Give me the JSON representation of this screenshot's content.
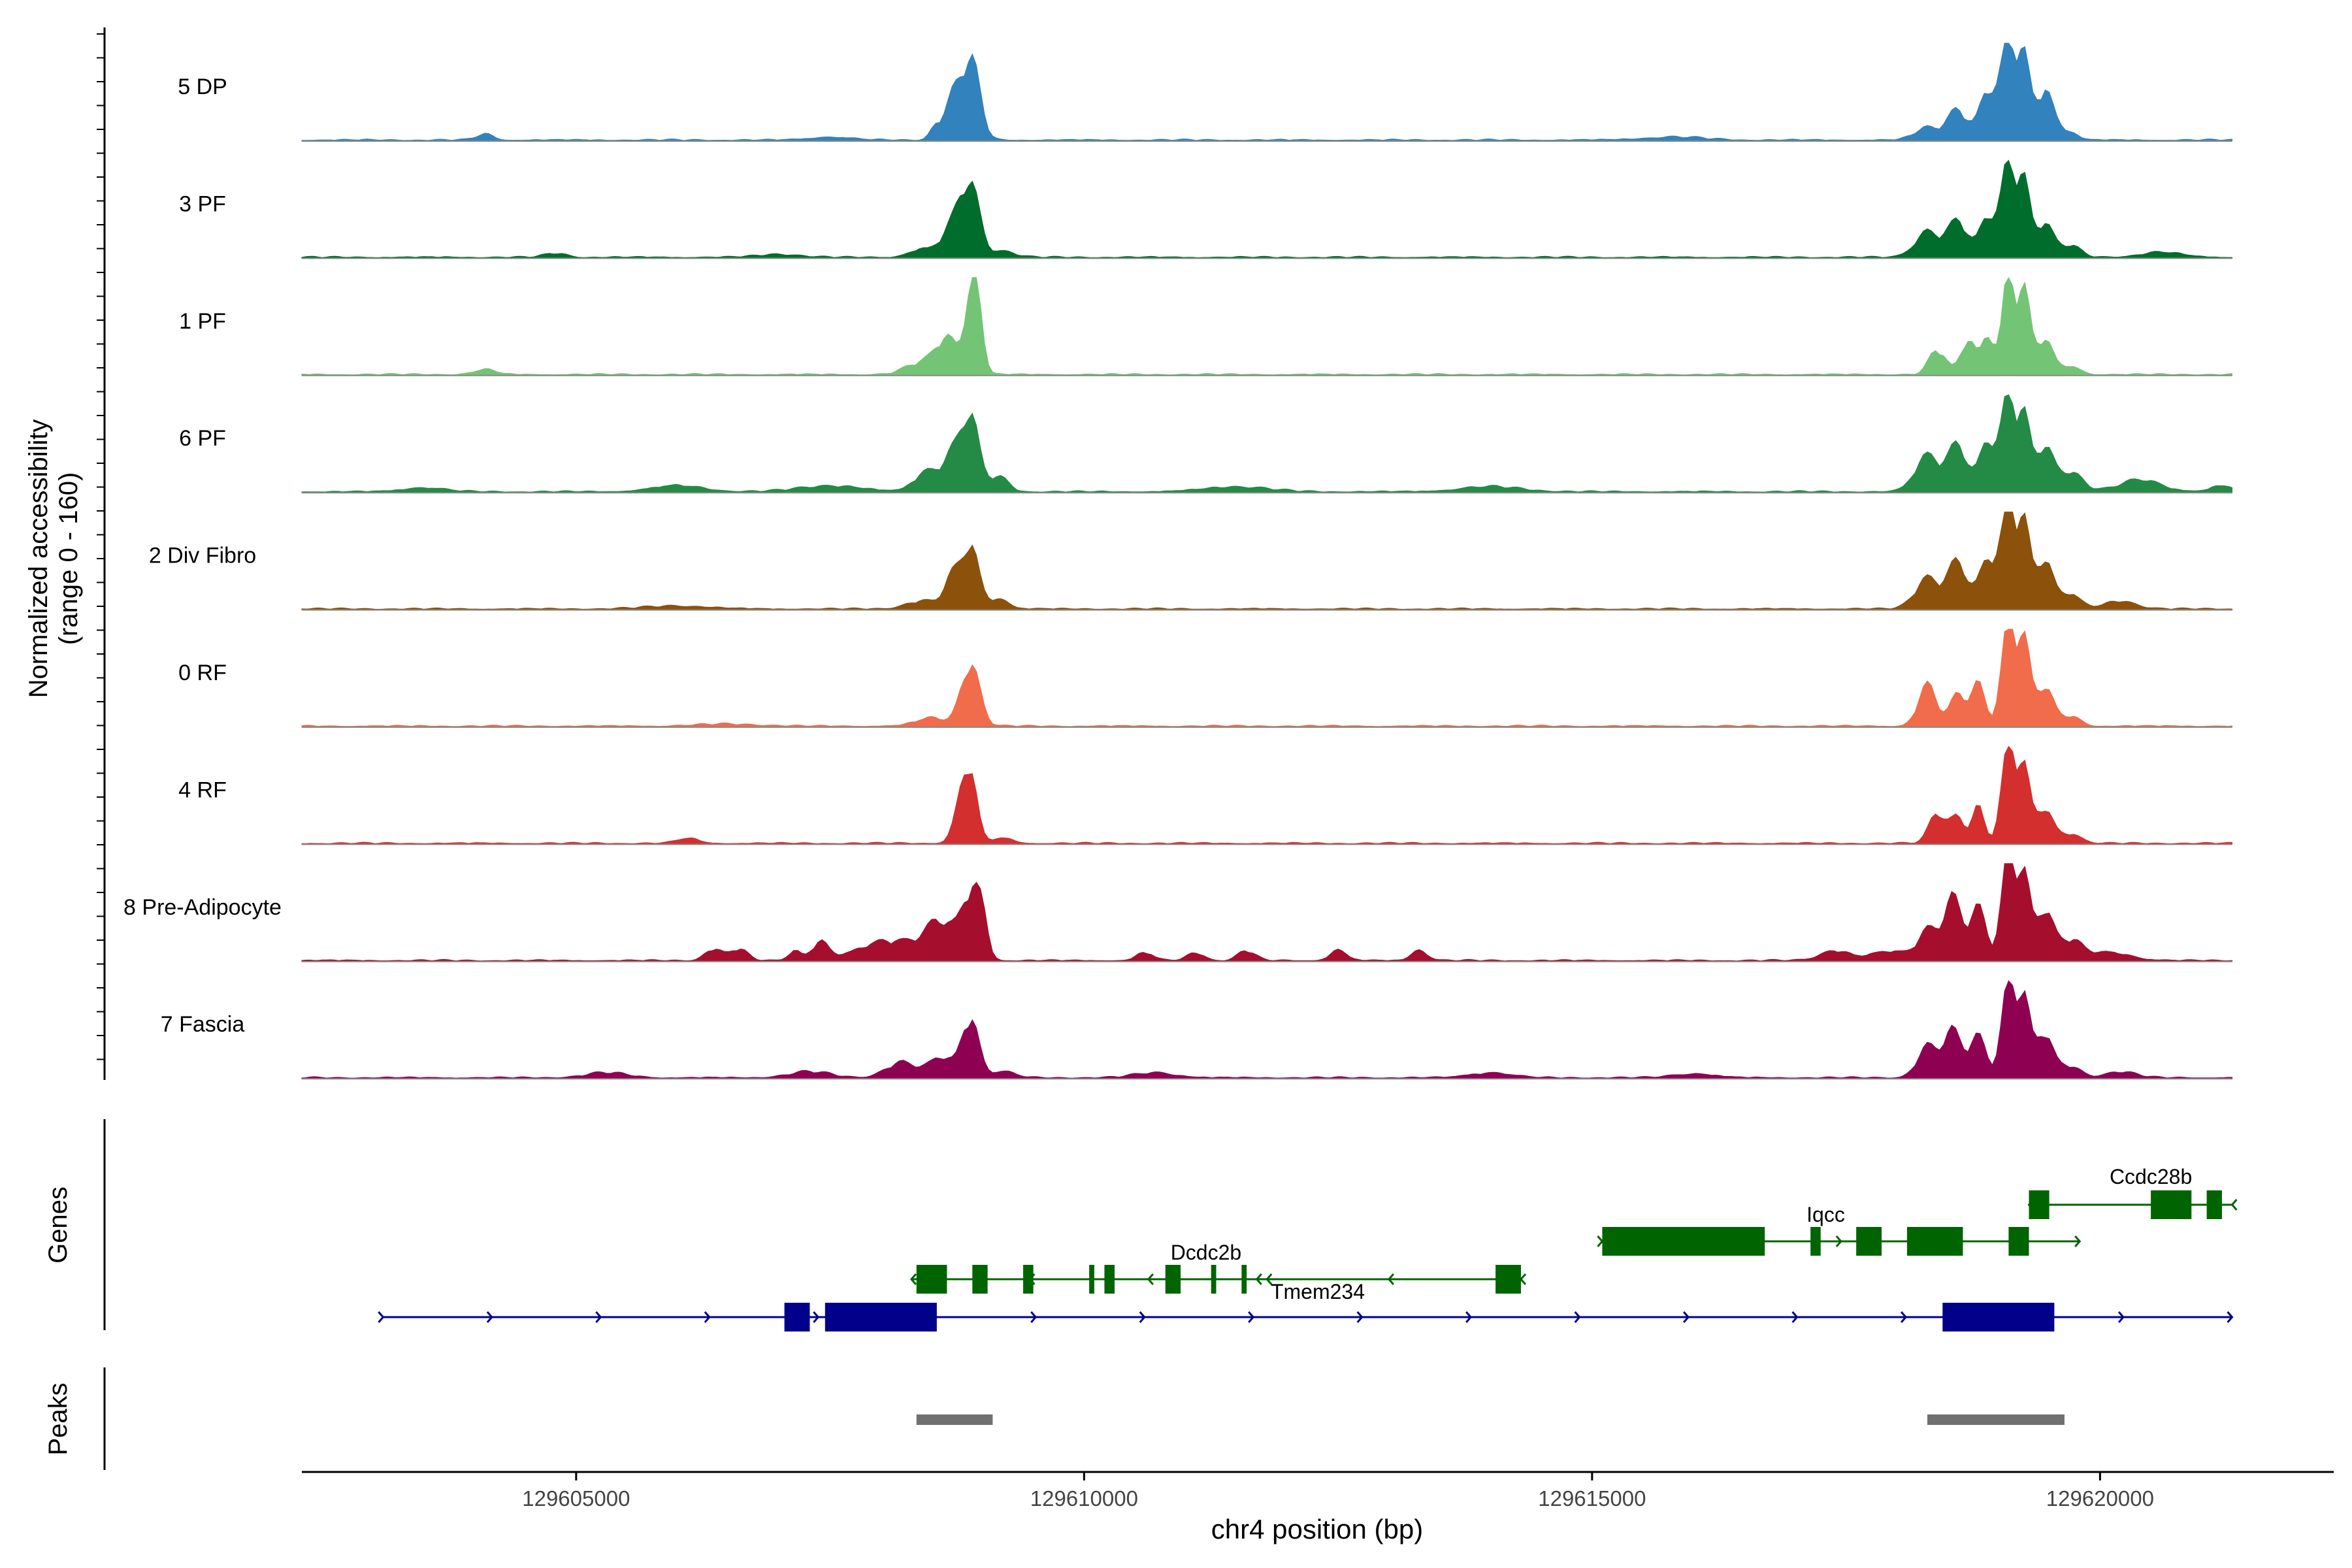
{
  "chart_data": {
    "type": "area",
    "title": "",
    "xlabel": "chr4 position (bp)",
    "ylabel_line1": "Normalized accessibility",
    "ylabel_line2": "(range 0 - 160)",
    "y_range": [
      0,
      160
    ],
    "x_range": [
      129602300,
      129622300
    ],
    "x_ticks": [
      129605000,
      129610000,
      129615000,
      129620000
    ],
    "x_tick_labels": [
      "129605000",
      "129610000",
      "129615000",
      "129620000"
    ],
    "track_extent": [
      129602300,
      129621300
    ],
    "panel_labels": {
      "genes": "Genes",
      "peaks": "Peaks"
    },
    "grid": false,
    "series": [
      {
        "name": "5 DP",
        "color": "#3182BD",
        "peaks": [
          [
            129604100,
            0.06,
            80
          ],
          [
            129607500,
            0.03,
            200
          ],
          [
            129608550,
            0.15,
            60
          ],
          [
            129608700,
            0.35,
            70
          ],
          [
            129608880,
            0.82,
            90
          ],
          [
            129615800,
            0.03,
            300
          ],
          [
            129618300,
            0.12,
            120
          ],
          [
            129618600,
            0.3,
            100
          ],
          [
            129618900,
            0.5,
            80
          ],
          [
            129619100,
            0.98,
            70
          ],
          [
            129619250,
            0.75,
            60
          ],
          [
            129619450,
            0.5,
            80
          ],
          [
            129619650,
            0.1,
            100
          ]
        ]
      },
      {
        "name": "3 PF",
        "color": "#006D2C",
        "peaks": [
          [
            129604800,
            0.04,
            100
          ],
          [
            129607000,
            0.03,
            200
          ],
          [
            129608400,
            0.08,
            120
          ],
          [
            129608700,
            0.3,
            100
          ],
          [
            129608880,
            0.7,
            90
          ],
          [
            129609200,
            0.06,
            120
          ],
          [
            129618300,
            0.25,
            120
          ],
          [
            129618600,
            0.35,
            100
          ],
          [
            129618900,
            0.4,
            80
          ],
          [
            129619100,
            0.9,
            70
          ],
          [
            129619250,
            0.7,
            60
          ],
          [
            129619450,
            0.35,
            80
          ],
          [
            129619700,
            0.12,
            100
          ],
          [
            129620600,
            0.05,
            200
          ]
        ]
      },
      {
        "name": "1 PF",
        "color": "#74C476",
        "peaks": [
          [
            129604100,
            0.05,
            100
          ],
          [
            129608400,
            0.12,
            150
          ],
          [
            129608650,
            0.35,
            100
          ],
          [
            129608880,
            0.7,
            60
          ],
          [
            129608950,
            0.5,
            60
          ],
          [
            129618400,
            0.25,
            80
          ],
          [
            129618700,
            0.35,
            70
          ],
          [
            129618900,
            0.4,
            60
          ],
          [
            129619100,
            0.97,
            60
          ],
          [
            129619250,
            0.8,
            60
          ],
          [
            129619450,
            0.35,
            80
          ],
          [
            129619700,
            0.08,
            100
          ]
        ]
      },
      {
        "name": "6 PF",
        "color": "#238B45",
        "peaks": [
          [
            129603500,
            0.04,
            200
          ],
          [
            129606000,
            0.06,
            250
          ],
          [
            129607500,
            0.06,
            300
          ],
          [
            129608450,
            0.2,
            120
          ],
          [
            129608700,
            0.35,
            90
          ],
          [
            129608880,
            0.75,
            80
          ],
          [
            129609150,
            0.15,
            100
          ],
          [
            129611500,
            0.05,
            300
          ],
          [
            129614000,
            0.05,
            300
          ],
          [
            129618300,
            0.35,
            120
          ],
          [
            129618600,
            0.45,
            100
          ],
          [
            129618900,
            0.5,
            80
          ],
          [
            129619100,
            0.9,
            70
          ],
          [
            129619250,
            0.7,
            60
          ],
          [
            129619450,
            0.45,
            80
          ],
          [
            129619700,
            0.2,
            120
          ],
          [
            129620400,
            0.12,
            200
          ],
          [
            129621200,
            0.06,
            100
          ]
        ]
      },
      {
        "name": "2 Div Fibro",
        "color": "#8C510A",
        "peaks": [
          [
            129606000,
            0.03,
            300
          ],
          [
            129608400,
            0.08,
            150
          ],
          [
            129608700,
            0.3,
            80
          ],
          [
            129608880,
            0.62,
            80
          ],
          [
            129609150,
            0.1,
            100
          ],
          [
            129618300,
            0.3,
            120
          ],
          [
            129618600,
            0.45,
            100
          ],
          [
            129618900,
            0.5,
            80
          ],
          [
            129619100,
            1.0,
            70
          ],
          [
            129619250,
            0.8,
            60
          ],
          [
            129619450,
            0.5,
            80
          ],
          [
            129619700,
            0.15,
            100
          ],
          [
            129620200,
            0.08,
            150
          ]
        ]
      },
      {
        "name": "0 RF",
        "color": "#F16C4A",
        "peaks": [
          [
            129606500,
            0.02,
            300
          ],
          [
            129608500,
            0.08,
            150
          ],
          [
            129608880,
            0.62,
            90
          ],
          [
            129618300,
            0.4,
            90
          ],
          [
            129618600,
            0.3,
            80
          ],
          [
            129618800,
            0.4,
            70
          ],
          [
            129619100,
            0.98,
            70
          ],
          [
            129619250,
            0.8,
            60
          ],
          [
            129619450,
            0.4,
            80
          ],
          [
            129619700,
            0.1,
            100
          ]
        ]
      },
      {
        "name": "4 RF",
        "color": "#D32F2F",
        "peaks": [
          [
            129606100,
            0.05,
            100
          ],
          [
            129608800,
            0.35,
            80
          ],
          [
            129608880,
            0.55,
            70
          ],
          [
            129609200,
            0.05,
            100
          ],
          [
            129618400,
            0.3,
            80
          ],
          [
            129618600,
            0.25,
            70
          ],
          [
            129618800,
            0.35,
            60
          ],
          [
            129619100,
            0.92,
            70
          ],
          [
            129619250,
            0.7,
            60
          ],
          [
            129619450,
            0.35,
            80
          ],
          [
            129619700,
            0.1,
            100
          ]
        ]
      },
      {
        "name": "8 Pre-Adipocyte",
        "color": "#A50F2D",
        "peaks": [
          [
            129606350,
            0.12,
            80
          ],
          [
            129606600,
            0.12,
            80
          ],
          [
            129607150,
            0.1,
            60
          ],
          [
            129607400,
            0.18,
            80
          ],
          [
            129608100,
            0.2,
            300
          ],
          [
            129608600,
            0.35,
            150
          ],
          [
            129608880,
            0.62,
            80
          ],
          [
            129609000,
            0.35,
            60
          ],
          [
            129610600,
            0.08,
            80
          ],
          [
            129611100,
            0.08,
            80
          ],
          [
            129611600,
            0.1,
            80
          ],
          [
            129612500,
            0.1,
            80
          ],
          [
            129613300,
            0.1,
            80
          ],
          [
            129617400,
            0.1,
            150
          ],
          [
            129617800,
            0.06,
            100
          ],
          [
            129618000,
            0.08,
            100
          ],
          [
            129618300,
            0.3,
            100
          ],
          [
            129618550,
            0.6,
            90
          ],
          [
            129618800,
            0.5,
            80
          ],
          [
            129619100,
            1.0,
            70
          ],
          [
            129619250,
            0.8,
            60
          ],
          [
            129619450,
            0.5,
            80
          ],
          [
            129619700,
            0.2,
            120
          ],
          [
            129620100,
            0.08,
            200
          ]
        ]
      },
      {
        "name": "7 Fascia",
        "color": "#8E0152",
        "peaks": [
          [
            129605300,
            0.05,
            200
          ],
          [
            129607300,
            0.06,
            200
          ],
          [
            129608200,
            0.15,
            150
          ],
          [
            129608600,
            0.2,
            120
          ],
          [
            129608880,
            0.6,
            80
          ],
          [
            129609200,
            0.06,
            120
          ],
          [
            129610700,
            0.05,
            200
          ],
          [
            129614000,
            0.05,
            200
          ],
          [
            129616000,
            0.04,
            200
          ],
          [
            129618300,
            0.3,
            100
          ],
          [
            129618550,
            0.45,
            90
          ],
          [
            129618800,
            0.4,
            80
          ],
          [
            129619100,
            0.9,
            70
          ],
          [
            129619250,
            0.75,
            60
          ],
          [
            129619450,
            0.45,
            80
          ],
          [
            129619700,
            0.12,
            100
          ],
          [
            129620200,
            0.06,
            150
          ]
        ]
      }
    ],
    "genes": [
      {
        "name": "Ccdc28b",
        "color": "#006400",
        "strand": "-",
        "start": 129619300,
        "end": 129621300,
        "exons": [
          [
            129619300,
            129619500
          ],
          [
            129620500,
            129620900
          ],
          [
            129621050,
            129621200
          ]
        ]
      },
      {
        "name": "Iqcc",
        "color": "#006400",
        "strand": "+",
        "start": 129615100,
        "end": 129619800,
        "exons": [
          [
            129615100,
            129616700
          ],
          [
            129617150,
            129617250
          ],
          [
            129617600,
            129617850
          ],
          [
            129618100,
            129618650
          ],
          [
            129619100,
            129619300
          ]
        ]
      },
      {
        "name": "Dcdc2b",
        "color": "#006400",
        "strand": "-",
        "start": 129608300,
        "end": 129611800,
        "exons": [
          [
            129608350,
            129608650
          ],
          [
            129608900,
            129609050
          ],
          [
            129609400,
            129609500
          ],
          [
            129610050,
            129610100
          ],
          [
            129610200,
            129610300
          ],
          [
            129610800,
            129610950
          ],
          [
            129611250,
            129611300
          ],
          [
            129611550,
            129611600
          ]
        ]
      },
      {
        "name": "Tmem234",
        "color": "#006400",
        "strand": "-",
        "start": 129611700,
        "end": 129614300,
        "exons": [
          [
            129614050,
            129614300
          ]
        ]
      },
      {
        "name": "",
        "color": "#00008B",
        "strand": "+",
        "start": 129603100,
        "end": 129621300,
        "exons": [
          [
            129607050,
            129607300
          ],
          [
            129607450,
            129608550
          ],
          [
            129618450,
            129619550
          ]
        ]
      }
    ],
    "peaks_track": [
      [
        129608350,
        129609100
      ],
      [
        129618300,
        129619650
      ]
    ],
    "peaks_color": "#707070"
  }
}
